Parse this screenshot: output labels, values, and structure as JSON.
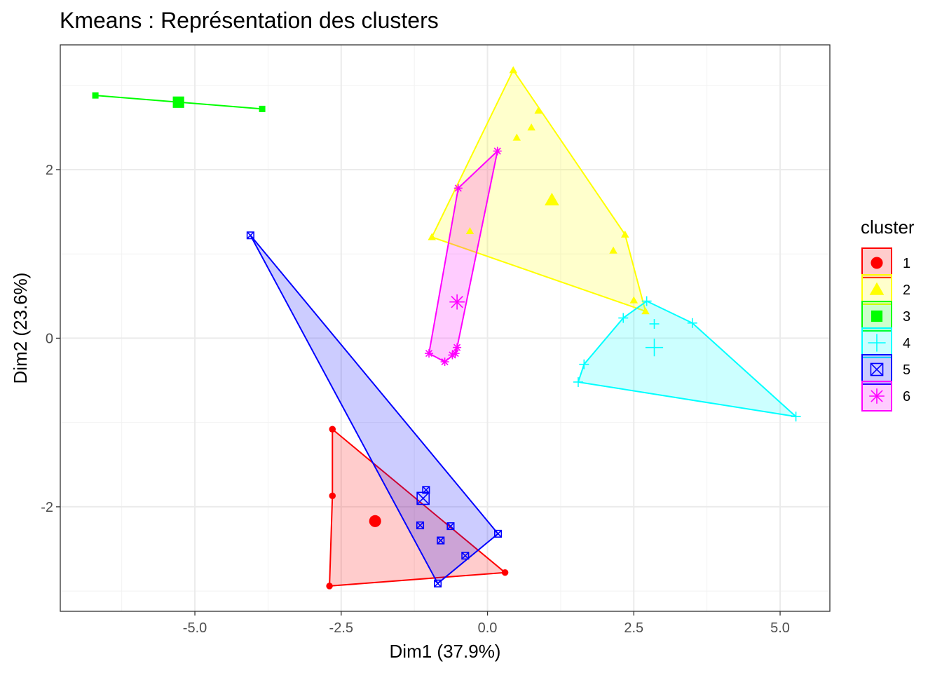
{
  "chart_data": {
    "type": "scatter",
    "title": "Kmeans : Représentation des clusters",
    "xlabel": "Dim1 (37.9%)",
    "ylabel": "Dim2 (23.6%)",
    "xlim": [
      -7.3,
      5.85
    ],
    "ylim": [
      -3.24,
      3.48
    ],
    "x_ticks": [
      -5.0,
      -2.5,
      0.0,
      2.5,
      5.0
    ],
    "x_tick_labels": [
      "-5.0",
      "-2.5",
      "0.0",
      "2.5",
      "5.0"
    ],
    "y_ticks": [
      -2,
      0,
      2
    ],
    "y_tick_labels": [
      "-2",
      "0",
      "2"
    ],
    "grid": true,
    "legend": {
      "title": "cluster",
      "position": "right"
    },
    "series": [
      {
        "name": "1",
        "color": "#ff0000",
        "shape": "circle",
        "points": [
          [
            -2.65,
            -1.08
          ],
          [
            -2.65,
            -1.87
          ],
          [
            -2.7,
            -2.94
          ],
          [
            0.3,
            -2.78
          ]
        ],
        "hull": [
          [
            -2.65,
            -1.08
          ],
          [
            0.3,
            -2.78
          ],
          [
            -2.7,
            -2.94
          ],
          [
            -2.65,
            -1.87
          ]
        ],
        "center": [
          -1.92,
          -2.17
        ]
      },
      {
        "name": "2",
        "color": "#ffff00",
        "shape": "triangle",
        "points": [
          [
            0.44,
            3.18
          ],
          [
            0.87,
            2.7
          ],
          [
            0.75,
            2.5
          ],
          [
            0.5,
            2.38
          ],
          [
            -0.3,
            1.27
          ],
          [
            -0.95,
            1.2
          ],
          [
            2.35,
            1.23
          ],
          [
            2.15,
            1.04
          ],
          [
            2.5,
            0.45
          ],
          [
            2.7,
            0.32
          ]
        ],
        "hull": [
          [
            0.44,
            3.18
          ],
          [
            2.35,
            1.23
          ],
          [
            2.7,
            0.32
          ],
          [
            -0.95,
            1.2
          ]
        ],
        "center": [
          1.1,
          1.64
        ]
      },
      {
        "name": "3",
        "color": "#00ff00",
        "shape": "square",
        "points": [
          [
            -6.7,
            2.88
          ],
          [
            -3.85,
            2.72
          ]
        ],
        "hull": [
          [
            -6.7,
            2.88
          ],
          [
            -3.85,
            2.72
          ]
        ],
        "center": [
          -5.28,
          2.8
        ]
      },
      {
        "name": "4",
        "color": "#00ffff",
        "shape": "plus",
        "points": [
          [
            2.72,
            0.44
          ],
          [
            2.32,
            0.24
          ],
          [
            2.85,
            0.17
          ],
          [
            3.5,
            0.18
          ],
          [
            1.65,
            -0.31
          ],
          [
            1.55,
            -0.52
          ],
          [
            5.27,
            -0.93
          ]
        ],
        "hull": [
          [
            2.72,
            0.44
          ],
          [
            3.5,
            0.18
          ],
          [
            5.27,
            -0.93
          ],
          [
            1.55,
            -0.52
          ],
          [
            1.65,
            -0.31
          ],
          [
            2.32,
            0.24
          ]
        ],
        "center": [
          2.85,
          -0.11
        ]
      },
      {
        "name": "5",
        "color": "#0000ff",
        "shape": "boxcross",
        "points": [
          [
            -4.05,
            1.22
          ],
          [
            -1.05,
            -1.8
          ],
          [
            -1.15,
            -2.22
          ],
          [
            -0.63,
            -2.23
          ],
          [
            -0.8,
            -2.4
          ],
          [
            -0.38,
            -2.58
          ],
          [
            0.18,
            -2.32
          ],
          [
            -0.85,
            -2.91
          ]
        ],
        "hull": [
          [
            -4.05,
            1.22
          ],
          [
            0.18,
            -2.32
          ],
          [
            -0.85,
            -2.91
          ]
        ],
        "center": [
          -1.1,
          -1.9
        ]
      },
      {
        "name": "6",
        "color": "#ff00ff",
        "shape": "asterisk",
        "points": [
          [
            0.17,
            2.22
          ],
          [
            -0.5,
            1.78
          ],
          [
            -1.0,
            -0.18
          ],
          [
            -0.73,
            -0.28
          ],
          [
            -0.6,
            -0.2
          ],
          [
            -0.55,
            -0.18
          ],
          [
            -0.52,
            -0.11
          ]
        ],
        "hull": [
          [
            0.17,
            2.22
          ],
          [
            -0.52,
            -0.11
          ],
          [
            -0.55,
            -0.18
          ],
          [
            -0.73,
            -0.28
          ],
          [
            -1.0,
            -0.18
          ],
          [
            -0.5,
            1.78
          ]
        ],
        "center": [
          -0.52,
          0.43
        ]
      }
    ]
  }
}
